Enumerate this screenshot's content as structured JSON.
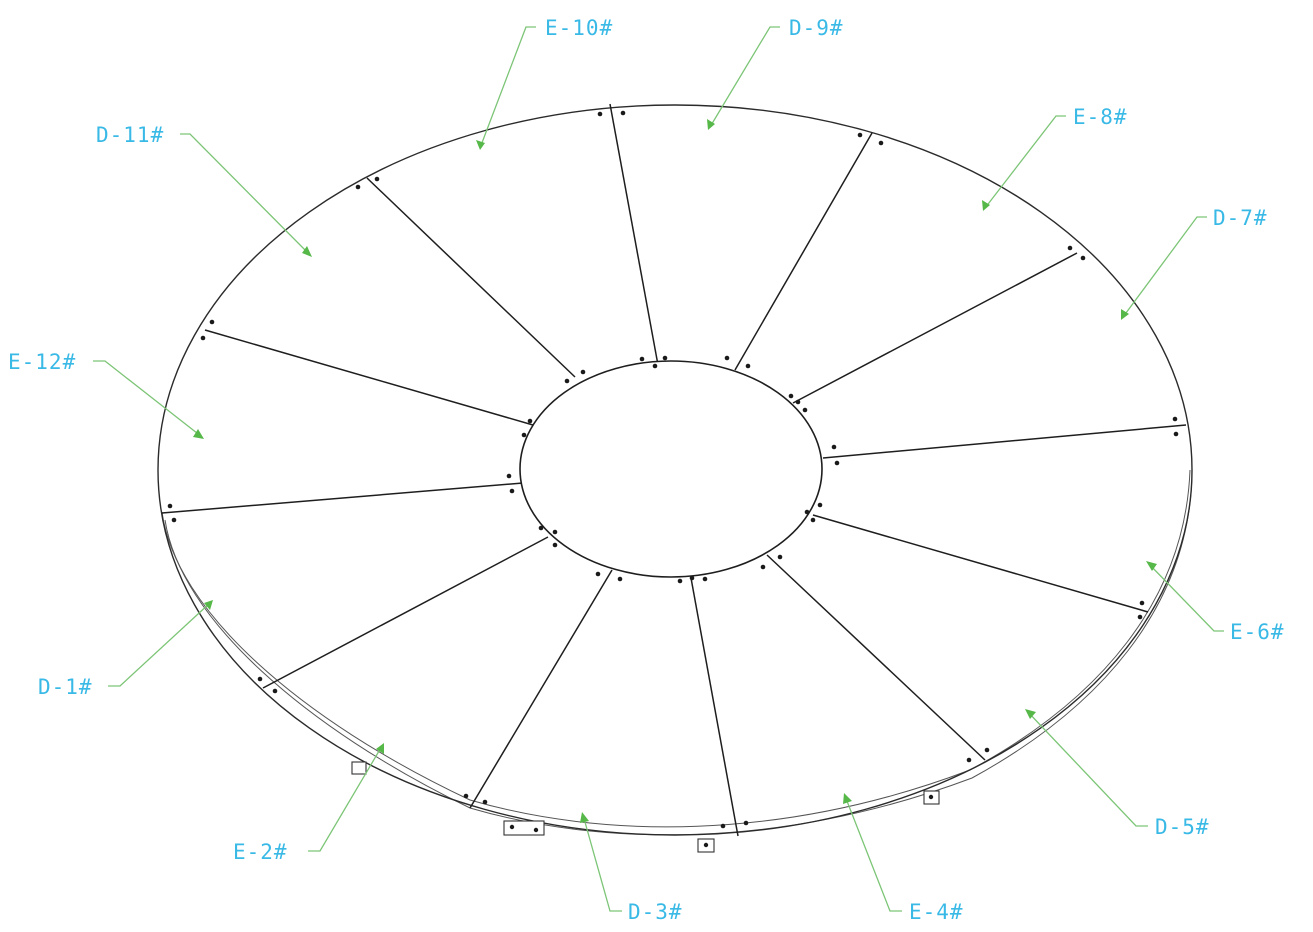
{
  "labels": {
    "e10": "E-10#",
    "d9": "D-9#",
    "e8": "E-8#",
    "d7": "D-7#",
    "d11": "D-11#",
    "e12": "E-12#",
    "e6": "E-6#",
    "d1": "D-1#",
    "d5": "D-5#",
    "e2": "E-2#",
    "d3": "D-3#",
    "e4": "E-4#"
  },
  "colors": {
    "label": "#39b9e6",
    "leader": "#7cc576",
    "arrowhead": "#56b848",
    "outline": "#1e1e1e"
  }
}
